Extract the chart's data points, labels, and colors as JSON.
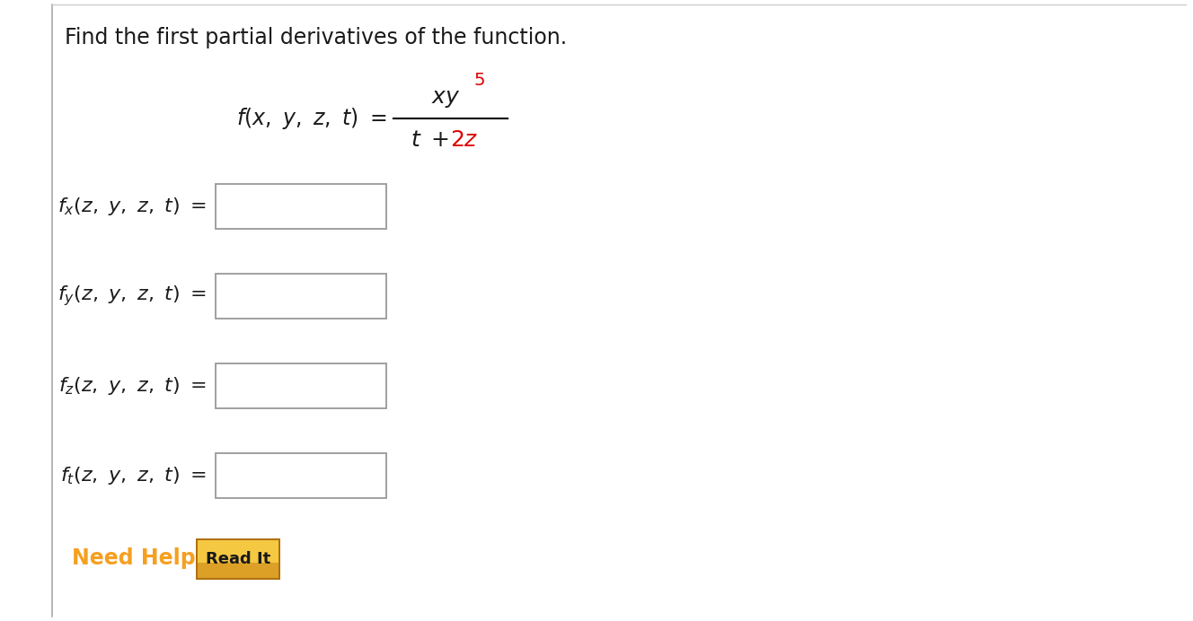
{
  "background_color": "#ffffff",
  "left_border_color": "#aaaaaa",
  "top_border_color": "#cccccc",
  "title_text": "Find the first partial derivatives of the function.",
  "title_color": "#1a1a1a",
  "title_fontsize": 17,
  "italic_color": "#1a1a1a",
  "red_color": "#dd0000",
  "orange_color": "#f5a623",
  "need_help_color": "#f5a020",
  "box_border_color": "#999999",
  "box_fill_color": "#ffffff",
  "read_it_bg_top": "#f5c842",
  "read_it_bg_bottom": "#c88010",
  "read_it_border": "#b07010",
  "read_it_text_color": "#1a1a1a",
  "fig_width": 13.28,
  "fig_height": 6.92,
  "dpi": 100
}
